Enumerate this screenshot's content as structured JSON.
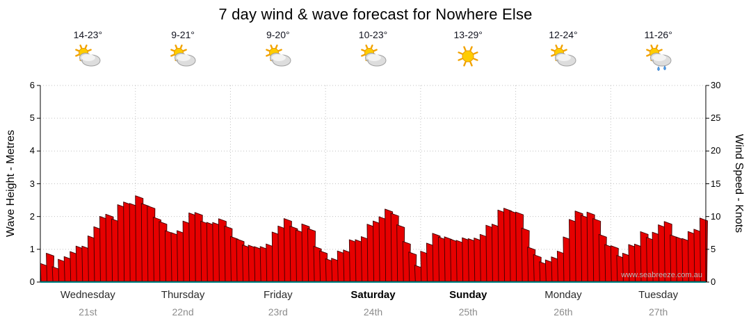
{
  "title": "7 day wind & wave forecast for Nowhere Else",
  "watermark": "www.seabreeze.com.au",
  "axes": {
    "left_label": "Wave Height - Metres",
    "right_label": "Wind Speed - Knots",
    "left_ticks": [
      0,
      1,
      2,
      3,
      4,
      5,
      6
    ],
    "right_ticks": [
      0,
      5,
      10,
      15,
      20,
      25,
      30
    ]
  },
  "colors": {
    "series_fill": "#e60000",
    "series_stroke": "#3c0000",
    "axis": "#000000",
    "axis_bottom": "#008080",
    "grid": "#c0c0c0",
    "date_text": "#8c8c8c"
  },
  "days": [
    {
      "name": "Wednesday",
      "date": "21st",
      "temp": "14-23°",
      "icon": "partly-cloudy",
      "bold": false
    },
    {
      "name": "Thursday",
      "date": "22nd",
      "temp": "9-21°",
      "icon": "partly-cloudy",
      "bold": false
    },
    {
      "name": "Friday",
      "date": "23rd",
      "temp": "9-20°",
      "icon": "partly-cloudy",
      "bold": false
    },
    {
      "name": "Saturday",
      "date": "24th",
      "temp": "10-23°",
      "icon": "partly-cloudy",
      "bold": true
    },
    {
      "name": "Sunday",
      "date": "25th",
      "temp": "13-29°",
      "icon": "sunny",
      "bold": true
    },
    {
      "name": "Monday",
      "date": "26th",
      "temp": "12-24°",
      "icon": "partly-cloudy",
      "bold": false
    },
    {
      "name": "Tuesday",
      "date": "27th",
      "temp": "11-26°",
      "icon": "partly-cloudy-rain",
      "bold": false
    }
  ],
  "chart_data": {
    "type": "area",
    "title": "7 day wind & wave forecast for Nowhere Else",
    "xlabel": "",
    "ylabel_left": "Wave Height - Metres",
    "ylabel_right": "Wind Speed - Knots",
    "ylim_left_metres": [
      0,
      6
    ],
    "ylim_right_knots": [
      0,
      30
    ],
    "grid": true,
    "categories": [
      "Wednesday 21st",
      "Thursday 22nd",
      "Friday 23rd",
      "Saturday 24th",
      "Sunday 25th",
      "Monday 26th",
      "Tuesday 27th"
    ],
    "samples_per_day": 8,
    "series": [
      {
        "name": "Wind Speed (knots)",
        "values": [
          3.8,
          3.0,
          4.5,
          5.5,
          8.0,
          9.5,
          10.5,
          12.0,
          12.5,
          11.0,
          8.0,
          7.0,
          11.0,
          10.5,
          9.5,
          8.5,
          7.0,
          6.0,
          4.0,
          6.5,
          9.0,
          8.5,
          8.5,
          5.0,
          4.0,
          5.5,
          6.0,
          7.5,
          10.0,
          12.0,
          8.5,
          2.5,
          6.5,
          7.5,
          7.0,
          6.5,
          7.5,
          8.0,
          10.0,
          12.5,
          9.5,
          5.0,
          3.5,
          4.0,
          8.0,
          11.0,
          10.5,
          5.5,
          4.5,
          5.5,
          6.5,
          8.0,
          9.0,
          7.0,
          6.0,
          9.5
        ]
      }
    ],
    "note_scale": "left axis metres equals right axis knots divided by 5"
  }
}
